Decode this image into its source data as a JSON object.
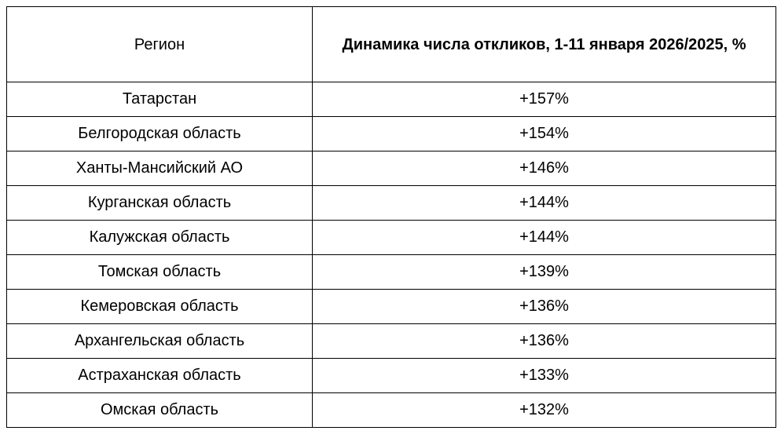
{
  "table": {
    "headers": {
      "region": "Регион",
      "dynamics": "Динамика числа откликов,  1-11 января 2026/2025, %"
    },
    "rows": [
      {
        "region": "Татарстан",
        "value": "+157%"
      },
      {
        "region": "Белгородская область",
        "value": "+154%"
      },
      {
        "region": "Ханты-Мансийский АО",
        "value": "+146%"
      },
      {
        "region": "Курганская область",
        "value": "+144%"
      },
      {
        "region": "Калужская область",
        "value": "+144%"
      },
      {
        "region": "Томская область",
        "value": "+139%"
      },
      {
        "region": "Кемеровская область",
        "value": "+136%"
      },
      {
        "region": "Архангельская область",
        "value": "+136%"
      },
      {
        "region": "Астраханская область",
        "value": "+133%"
      },
      {
        "region": "Омская область",
        "value": "+132%"
      }
    ]
  }
}
